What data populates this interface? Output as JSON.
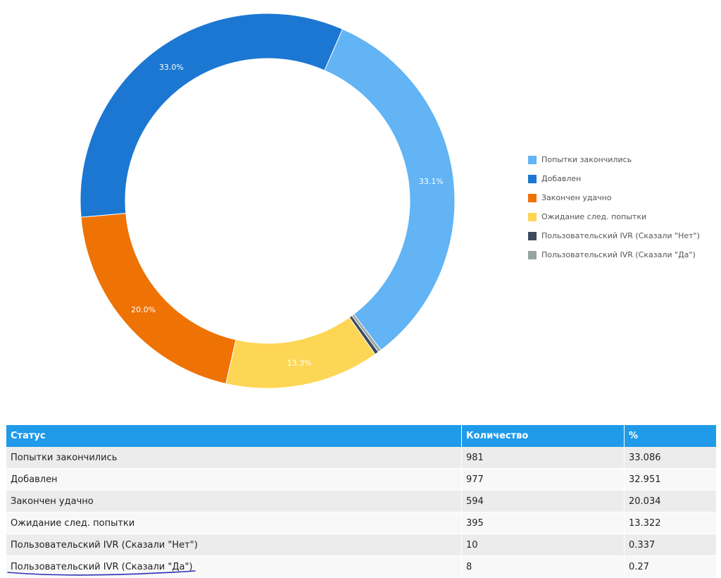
{
  "chart_data": {
    "type": "pie",
    "subtype": "donut",
    "title": "",
    "legend_position": "right",
    "slices": [
      {
        "name": "Попытки закончились",
        "value": 33.086,
        "label": "33.1%",
        "color": "#62b4f4"
      },
      {
        "name": "Добавлен",
        "value": 32.951,
        "label": "33.0%",
        "color": "#1c77d2"
      },
      {
        "name": "Закончен удачно",
        "value": 20.034,
        "label": "20.0%",
        "color": "#ee7204"
      },
      {
        "name": "Ожидание след. попытки",
        "value": 13.322,
        "label": "13.3%",
        "color": "#fdd655"
      },
      {
        "name": "Пользовательский IVR (Сказали \"Нет\")",
        "value": 0.337,
        "label": "",
        "color": "#3d4c5c"
      },
      {
        "name": "Пользовательский IVR (Сказали \"Да\")",
        "value": 0.27,
        "label": "",
        "color": "#98a3a3"
      }
    ]
  },
  "table": {
    "headers": [
      "Статус",
      "Количество",
      "%"
    ],
    "rows": [
      [
        "Попытки закончились",
        "981",
        "33.086"
      ],
      [
        "Добавлен",
        "977",
        "32.951"
      ],
      [
        "Закончен удачно",
        "594",
        "20.034"
      ],
      [
        "Ожидание след. попытки",
        "395",
        "13.322"
      ],
      [
        "Пользовательский IVR (Сказали \"Нет\")",
        "10",
        "0.337"
      ],
      [
        "Пользовательский IVR (Сказали \"Да\")",
        "8",
        "0.27"
      ]
    ]
  },
  "colors": {
    "table_header": "#1f9bea",
    "row_odd": "#ececec",
    "row_even": "#f8f8f8",
    "pen_mark": "#2b2fb8"
  }
}
